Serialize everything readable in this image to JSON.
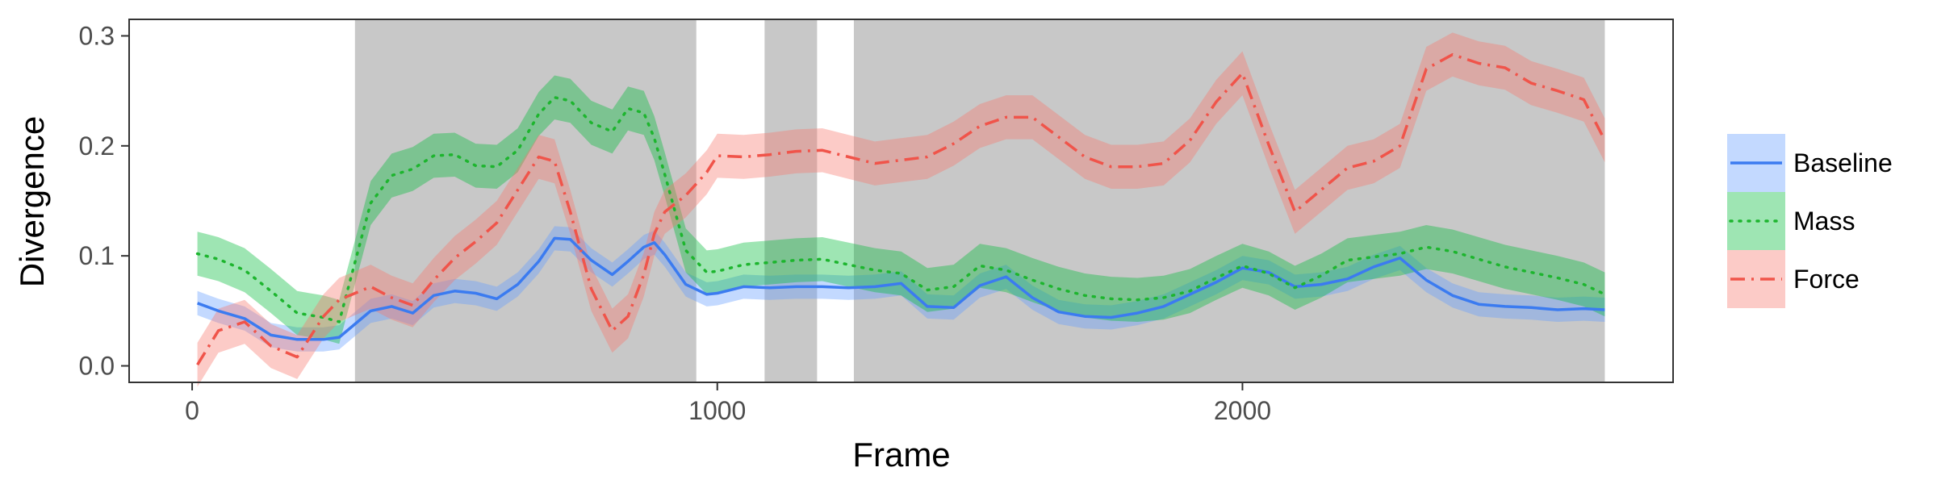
{
  "chart_data": {
    "type": "line",
    "title": "",
    "xlabel": "Frame",
    "ylabel": "Divergence",
    "xlim": [
      -120,
      2820
    ],
    "ylim": [
      -0.015,
      0.315
    ],
    "x_ticks": [
      0,
      1000,
      2000
    ],
    "x_tick_labels": [
      "0",
      "1000",
      "2000"
    ],
    "y_ticks": [
      0.0,
      0.1,
      0.2,
      0.3
    ],
    "y_tick_labels": [
      "0.0",
      "0.1",
      "0.2",
      "0.3"
    ],
    "grid": false,
    "legend_position": "right",
    "shaded_regions": [
      [
        310,
        960
      ],
      [
        1090,
        1190
      ],
      [
        1260,
        2690
      ]
    ],
    "x": [
      10,
      50,
      100,
      150,
      200,
      250,
      280,
      340,
      380,
      420,
      460,
      500,
      540,
      580,
      620,
      660,
      690,
      720,
      760,
      800,
      830,
      860,
      880,
      900,
      940,
      980,
      1000,
      1050,
      1100,
      1150,
      1200,
      1250,
      1300,
      1350,
      1400,
      1450,
      1500,
      1550,
      1600,
      1650,
      1700,
      1750,
      1800,
      1850,
      1900,
      1950,
      2000,
      2050,
      2100,
      2150,
      2200,
      2250,
      2300,
      2350,
      2400,
      2450,
      2500,
      2550,
      2600,
      2650,
      2690
    ],
    "series": [
      {
        "name": "Baseline",
        "color": "#619CFF",
        "line_color": "#3B7BF0",
        "dash": "solid",
        "y": [
          0.057,
          0.05,
          0.043,
          0.028,
          0.024,
          0.024,
          0.026,
          0.05,
          0.054,
          0.048,
          0.064,
          0.068,
          0.066,
          0.061,
          0.074,
          0.095,
          0.116,
          0.115,
          0.096,
          0.083,
          0.095,
          0.108,
          0.112,
          0.101,
          0.074,
          0.065,
          0.066,
          0.072,
          0.071,
          0.072,
          0.072,
          0.071,
          0.072,
          0.075,
          0.054,
          0.053,
          0.073,
          0.081,
          0.062,
          0.049,
          0.045,
          0.044,
          0.048,
          0.054,
          0.065,
          0.076,
          0.089,
          0.085,
          0.072,
          0.074,
          0.079,
          0.09,
          0.098,
          0.078,
          0.064,
          0.056,
          0.054,
          0.053,
          0.051,
          0.052,
          0.051
        ],
        "band": 0.011
      },
      {
        "name": "Mass",
        "color": "#00BA38",
        "line_color": "#1DB52E",
        "dash": "dotted",
        "y": [
          0.102,
          0.097,
          0.087,
          0.068,
          0.048,
          0.044,
          0.04,
          0.148,
          0.173,
          0.179,
          0.191,
          0.192,
          0.182,
          0.181,
          0.196,
          0.229,
          0.244,
          0.241,
          0.221,
          0.213,
          0.234,
          0.23,
          0.207,
          0.174,
          0.105,
          0.085,
          0.086,
          0.092,
          0.094,
          0.096,
          0.097,
          0.092,
          0.087,
          0.084,
          0.069,
          0.072,
          0.091,
          0.087,
          0.078,
          0.07,
          0.064,
          0.061,
          0.06,
          0.062,
          0.068,
          0.08,
          0.091,
          0.084,
          0.071,
          0.082,
          0.096,
          0.099,
          0.102,
          0.108,
          0.104,
          0.097,
          0.09,
          0.085,
          0.08,
          0.074,
          0.065
        ],
        "band": 0.02
      },
      {
        "name": "Force",
        "color": "#F8766D",
        "line_color": "#F0544A",
        "dash": "dashdot",
        "y": [
          0.001,
          0.032,
          0.04,
          0.018,
          0.008,
          0.045,
          0.06,
          0.072,
          0.062,
          0.055,
          0.078,
          0.098,
          0.113,
          0.13,
          0.16,
          0.19,
          0.186,
          0.14,
          0.07,
          0.032,
          0.045,
          0.083,
          0.12,
          0.14,
          0.155,
          0.176,
          0.191,
          0.19,
          0.192,
          0.195,
          0.196,
          0.19,
          0.184,
          0.187,
          0.19,
          0.202,
          0.218,
          0.226,
          0.226,
          0.208,
          0.19,
          0.181,
          0.181,
          0.184,
          0.205,
          0.24,
          0.266,
          0.201,
          0.14,
          0.16,
          0.18,
          0.186,
          0.2,
          0.27,
          0.283,
          0.275,
          0.271,
          0.257,
          0.25,
          0.242,
          0.205
        ],
        "band": 0.02
      }
    ]
  }
}
